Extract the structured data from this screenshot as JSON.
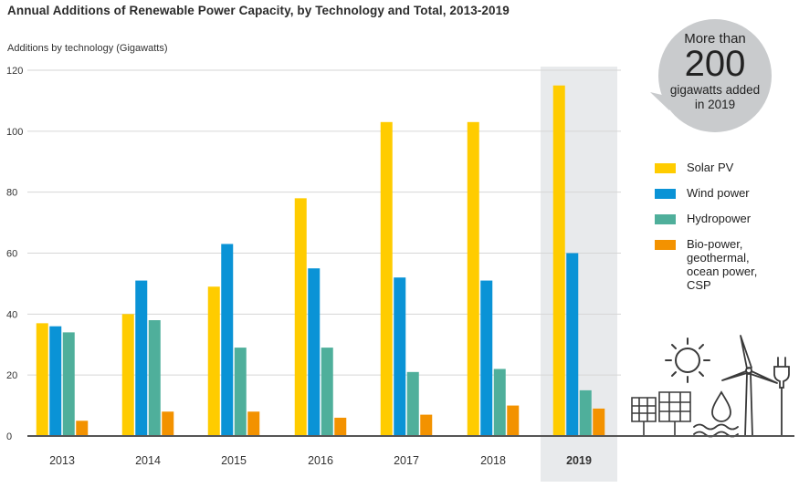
{
  "title": "Annual Additions of Renewable Power Capacity, by Technology and Total, 2013-2019",
  "ylabel": "Additions by technology (Gigawatts)",
  "callout": {
    "line1": "More than",
    "big": "200",
    "line2": "gigawatts added",
    "line3": "in 2019"
  },
  "colors": {
    "solar": "#FFCC00",
    "wind": "#0A93D6",
    "hydro": "#4FAF9B",
    "bio": "#F39200",
    "highlight": "#E8EAEC",
    "bubble": "#C9CBCD",
    "axis": "#555555",
    "grid": "#D6D6D6"
  },
  "icons": [
    "sun-icon",
    "solar-panel-icon",
    "water-drop-icon",
    "wind-turbine-icon",
    "plug-icon"
  ],
  "chart_data": {
    "type": "bar",
    "categories": [
      "2013",
      "2014",
      "2015",
      "2016",
      "2017",
      "2018",
      "2019"
    ],
    "highlight_category": "2019",
    "ylim": [
      0,
      120
    ],
    "yticks": [
      0,
      20,
      40,
      60,
      80,
      100,
      120
    ],
    "grid": true,
    "legend_position": "right",
    "series": [
      {
        "name": "Solar PV",
        "color": "#FFCC00",
        "values": [
          37,
          40,
          49,
          78,
          103,
          103,
          115
        ]
      },
      {
        "name": "Wind power",
        "color": "#0A93D6",
        "values": [
          36,
          51,
          63,
          55,
          52,
          51,
          60
        ]
      },
      {
        "name": "Hydropower",
        "color": "#4FAF9B",
        "values": [
          34,
          38,
          29,
          29,
          21,
          22,
          15
        ]
      },
      {
        "name": "Bio-power,\ngeothermal,\nocean power,\nCSP",
        "color": "#F39200",
        "values": [
          5,
          8,
          8,
          6,
          7,
          10,
          9
        ]
      }
    ]
  }
}
